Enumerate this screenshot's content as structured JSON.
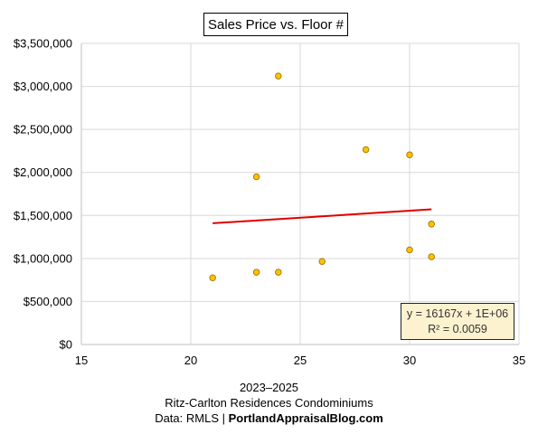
{
  "chart_data": {
    "type": "scatter",
    "title": "Sales Price vs. Floor #",
    "xlabel": "",
    "ylabel": "",
    "xlim": [
      15,
      35
    ],
    "ylim": [
      0,
      3500000
    ],
    "x_ticks": [
      15,
      20,
      25,
      30,
      35
    ],
    "y_ticks": [
      0,
      500000,
      1000000,
      1500000,
      2000000,
      2500000,
      3000000,
      3500000
    ],
    "x_tick_labels": [
      "15",
      "20",
      "25",
      "30",
      "35"
    ],
    "y_tick_labels": [
      "$0",
      "$500,000",
      "$1,000,000",
      "$1,500,000",
      "$2,000,000",
      "$2,500,000",
      "$3,000,000",
      "$3,500,000"
    ],
    "grid": true,
    "points": [
      {
        "x": 21,
        "y": 775000
      },
      {
        "x": 23,
        "y": 1950000
      },
      {
        "x": 23,
        "y": 840000
      },
      {
        "x": 24,
        "y": 3120000
      },
      {
        "x": 24,
        "y": 840000
      },
      {
        "x": 26,
        "y": 965000
      },
      {
        "x": 28,
        "y": 2265000
      },
      {
        "x": 30,
        "y": 2205000
      },
      {
        "x": 30,
        "y": 1100000
      },
      {
        "x": 31,
        "y": 1400000
      },
      {
        "x": 31,
        "y": 1020000
      }
    ],
    "trendline": {
      "type": "linear",
      "slope": 16167,
      "intercept": 1070000,
      "x_start": 21,
      "x_end": 31,
      "equation_label": "y = 16167x + 1E+06",
      "r2_label": "R² = 0.0059",
      "color": "#e00000"
    },
    "marker_fill": "#ffc000",
    "marker_stroke": "#a07800"
  },
  "captions": {
    "line1": "2023–2025",
    "line2": "Ritz-Carlton Residences Condominiums",
    "line3_prefix": "Data: RMLS | ",
    "line3_bold": "PortlandAppraisalBlog.com"
  }
}
